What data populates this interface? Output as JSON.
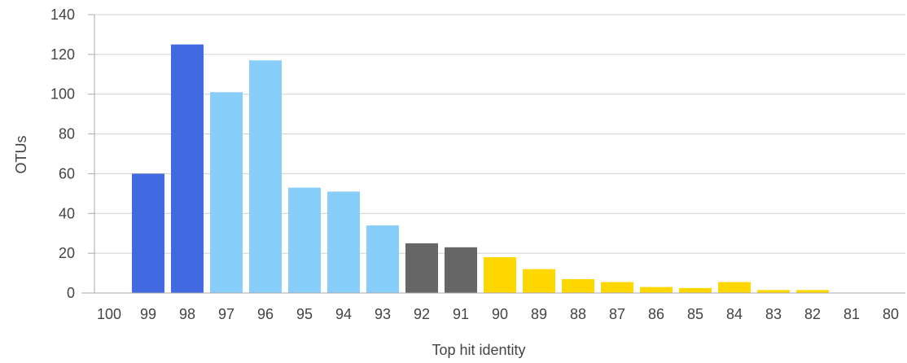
{
  "chart_data": {
    "type": "bar",
    "xlabel": "Top hit identity",
    "ylabel": "OTUs",
    "ylim": [
      0,
      140
    ],
    "yticks": [
      0,
      20,
      40,
      60,
      80,
      100,
      120,
      140
    ],
    "grid": true,
    "categories": [
      "100",
      "99",
      "98",
      "97",
      "96",
      "95",
      "94",
      "93",
      "92",
      "91",
      "90",
      "89",
      "88",
      "87",
      "86",
      "85",
      "84",
      "83",
      "82",
      "81",
      "80"
    ],
    "values": [
      0,
      60,
      125,
      101,
      117,
      53,
      51,
      34,
      25,
      23,
      18,
      12,
      7,
      5.5,
      3,
      2.5,
      5.5,
      1.5,
      1.5,
      0,
      0
    ],
    "bar_colors": [
      "#4169E1",
      "#4169E1",
      "#4169E1",
      "#87CEFA",
      "#87CEFA",
      "#87CEFA",
      "#87CEFA",
      "#87CEFA",
      "#666666",
      "#666666",
      "#FFD700",
      "#FFD700",
      "#FFD700",
      "#FFD700",
      "#FFD700",
      "#FFD700",
      "#FFD700",
      "#FFD700",
      "#FFD700",
      "#FFD700",
      "#FFD700"
    ]
  }
}
